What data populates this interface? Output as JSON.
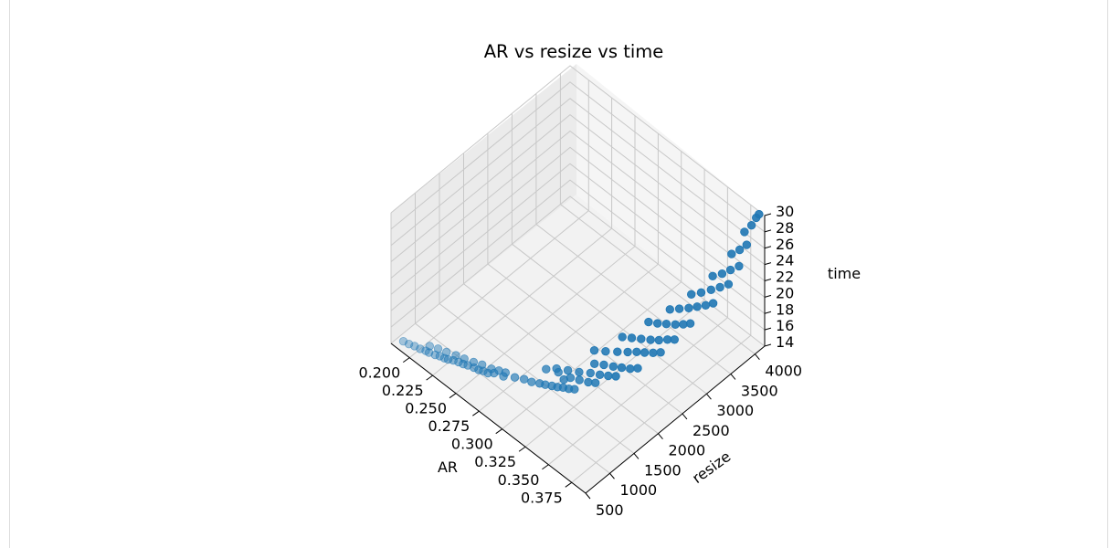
{
  "chart_data": {
    "type": "scatter",
    "projection": "3d",
    "title": "AR vs resize vs time",
    "xlabel": "AR",
    "ylabel": "resize",
    "zlabel": "time",
    "xlim": [
      0.18,
      0.39
    ],
    "ylim": [
      500,
      4200
    ],
    "zlim": [
      14,
      30
    ],
    "xticks": [
      "0.200",
      "0.225",
      "0.250",
      "0.275",
      "0.300",
      "0.325",
      "0.350",
      "0.375"
    ],
    "yticks": [
      "500",
      "1000",
      "1500",
      "2000",
      "2500",
      "3000",
      "3500",
      "4000"
    ],
    "zticks": [
      "14",
      "16",
      "18",
      "20",
      "22",
      "24",
      "26",
      "28",
      "30"
    ],
    "grid": true,
    "color": "#1f77b4",
    "points": [
      {
        "x": 0.186,
        "y": 640,
        "z": 14.1
      },
      {
        "x": 0.191,
        "y": 660,
        "z": 14.1
      },
      {
        "x": 0.196,
        "y": 680,
        "z": 14.2
      },
      {
        "x": 0.201,
        "y": 700,
        "z": 14.2
      },
      {
        "x": 0.206,
        "y": 720,
        "z": 14.3
      },
      {
        "x": 0.209,
        "y": 730,
        "z": 14.3
      },
      {
        "x": 0.214,
        "y": 760,
        "z": 14.3
      },
      {
        "x": 0.218,
        "y": 780,
        "z": 14.4
      },
      {
        "x": 0.222,
        "y": 800,
        "z": 14.4
      },
      {
        "x": 0.225,
        "y": 820,
        "z": 14.4
      },
      {
        "x": 0.229,
        "y": 850,
        "z": 14.5
      },
      {
        "x": 0.233,
        "y": 880,
        "z": 14.5
      },
      {
        "x": 0.237,
        "y": 900,
        "z": 14.5
      },
      {
        "x": 0.241,
        "y": 920,
        "z": 14.6
      },
      {
        "x": 0.246,
        "y": 950,
        "z": 14.6
      },
      {
        "x": 0.25,
        "y": 970,
        "z": 14.6
      },
      {
        "x": 0.254,
        "y": 990,
        "z": 14.7
      },
      {
        "x": 0.258,
        "y": 1010,
        "z": 14.7
      },
      {
        "x": 0.205,
        "y": 820,
        "z": 14.3
      },
      {
        "x": 0.212,
        "y": 860,
        "z": 14.4
      },
      {
        "x": 0.219,
        "y": 900,
        "z": 14.4
      },
      {
        "x": 0.227,
        "y": 940,
        "z": 14.5
      },
      {
        "x": 0.234,
        "y": 980,
        "z": 14.5
      },
      {
        "x": 0.242,
        "y": 1020,
        "z": 14.6
      },
      {
        "x": 0.249,
        "y": 1060,
        "z": 14.7
      },
      {
        "x": 0.257,
        "y": 1100,
        "z": 14.7
      },
      {
        "x": 0.263,
        "y": 1140,
        "z": 14.8
      },
      {
        "x": 0.268,
        "y": 1180,
        "z": 14.8
      },
      {
        "x": 0.262,
        "y": 1060,
        "z": 14.8
      },
      {
        "x": 0.27,
        "y": 1100,
        "z": 14.9
      },
      {
        "x": 0.277,
        "y": 1200,
        "z": 14.9
      },
      {
        "x": 0.284,
        "y": 1260,
        "z": 15.0
      },
      {
        "x": 0.29,
        "y": 1300,
        "z": 15.0
      },
      {
        "x": 0.296,
        "y": 1350,
        "z": 15.1
      },
      {
        "x": 0.3,
        "y": 1390,
        "z": 15.1
      },
      {
        "x": 0.305,
        "y": 1430,
        "z": 15.2
      },
      {
        "x": 0.309,
        "y": 1470,
        "z": 15.2
      },
      {
        "x": 0.313,
        "y": 1510,
        "z": 15.3
      },
      {
        "x": 0.317,
        "y": 1550,
        "z": 15.3
      },
      {
        "x": 0.321,
        "y": 1590,
        "z": 15.4
      },
      {
        "x": 0.308,
        "y": 1620,
        "z": 15.3
      },
      {
        "x": 0.3,
        "y": 1660,
        "z": 15.3
      },
      {
        "x": 0.311,
        "y": 1700,
        "z": 15.4
      },
      {
        "x": 0.318,
        "y": 1750,
        "z": 15.5
      },
      {
        "x": 0.325,
        "y": 1800,
        "z": 15.6
      },
      {
        "x": 0.33,
        "y": 1850,
        "z": 15.7
      },
      {
        "x": 0.29,
        "y": 1600,
        "z": 15.1
      },
      {
        "x": 0.296,
        "y": 1700,
        "z": 15.2
      },
      {
        "x": 0.304,
        "y": 1780,
        "z": 15.3
      },
      {
        "x": 0.312,
        "y": 1860,
        "z": 15.4
      },
      {
        "x": 0.32,
        "y": 1940,
        "z": 15.6
      },
      {
        "x": 0.327,
        "y": 2000,
        "z": 15.7
      },
      {
        "x": 0.333,
        "y": 2060,
        "z": 15.8
      },
      {
        "x": 0.338,
        "y": 2120,
        "z": 15.9
      },
      {
        "x": 0.316,
        "y": 2100,
        "z": 15.6
      },
      {
        "x": 0.323,
        "y": 2160,
        "z": 15.8
      },
      {
        "x": 0.33,
        "y": 2220,
        "z": 15.9
      },
      {
        "x": 0.336,
        "y": 2280,
        "z": 16.0
      },
      {
        "x": 0.342,
        "y": 2340,
        "z": 16.1
      },
      {
        "x": 0.347,
        "y": 2400,
        "z": 16.3
      },
      {
        "x": 0.308,
        "y": 2250,
        "z": 15.8
      },
      {
        "x": 0.316,
        "y": 2330,
        "z": 16.0
      },
      {
        "x": 0.324,
        "y": 2420,
        "z": 16.2
      },
      {
        "x": 0.331,
        "y": 2500,
        "z": 16.4
      },
      {
        "x": 0.337,
        "y": 2570,
        "z": 16.6
      },
      {
        "x": 0.343,
        "y": 2620,
        "z": 16.8
      },
      {
        "x": 0.349,
        "y": 2680,
        "z": 17.0
      },
      {
        "x": 0.354,
        "y": 2740,
        "z": 17.2
      },
      {
        "x": 0.32,
        "y": 2600,
        "z": 16.8
      },
      {
        "x": 0.327,
        "y": 2660,
        "z": 17.0
      },
      {
        "x": 0.334,
        "y": 2720,
        "z": 17.2
      },
      {
        "x": 0.341,
        "y": 2780,
        "z": 17.4
      },
      {
        "x": 0.347,
        "y": 2840,
        "z": 17.6
      },
      {
        "x": 0.353,
        "y": 2900,
        "z": 17.9
      },
      {
        "x": 0.358,
        "y": 2950,
        "z": 18.1
      },
      {
        "x": 0.33,
        "y": 2950,
        "z": 17.8
      },
      {
        "x": 0.337,
        "y": 3000,
        "z": 18.0
      },
      {
        "x": 0.344,
        "y": 3050,
        "z": 18.3
      },
      {
        "x": 0.351,
        "y": 3100,
        "z": 18.6
      },
      {
        "x": 0.357,
        "y": 3150,
        "z": 18.9
      },
      {
        "x": 0.362,
        "y": 3200,
        "z": 19.2
      },
      {
        "x": 0.34,
        "y": 3200,
        "z": 19.0
      },
      {
        "x": 0.347,
        "y": 3260,
        "z": 19.4
      },
      {
        "x": 0.354,
        "y": 3320,
        "z": 19.8
      },
      {
        "x": 0.36,
        "y": 3380,
        "z": 20.2
      },
      {
        "x": 0.366,
        "y": 3440,
        "z": 20.6
      },
      {
        "x": 0.371,
        "y": 3500,
        "z": 21.0
      },
      {
        "x": 0.35,
        "y": 3450,
        "z": 20.5
      },
      {
        "x": 0.357,
        "y": 3520,
        "z": 21.0
      },
      {
        "x": 0.364,
        "y": 3590,
        "z": 21.6
      },
      {
        "x": 0.37,
        "y": 3660,
        "z": 22.1
      },
      {
        "x": 0.376,
        "y": 3720,
        "z": 22.7
      },
      {
        "x": 0.36,
        "y": 3700,
        "z": 22.4
      },
      {
        "x": 0.367,
        "y": 3760,
        "z": 23.0
      },
      {
        "x": 0.373,
        "y": 3820,
        "z": 23.7
      },
      {
        "x": 0.379,
        "y": 3880,
        "z": 24.4
      },
      {
        "x": 0.37,
        "y": 3900,
        "z": 25.0
      },
      {
        "x": 0.376,
        "y": 3950,
        "z": 25.8
      },
      {
        "x": 0.381,
        "y": 4000,
        "z": 26.6
      },
      {
        "x": 0.376,
        "y": 4050,
        "z": 27.5
      },
      {
        "x": 0.381,
        "y": 4100,
        "z": 28.5
      },
      {
        "x": 0.384,
        "y": 4140,
        "z": 29.5
      },
      {
        "x": 0.386,
        "y": 4160,
        "z": 30.0
      }
    ]
  }
}
